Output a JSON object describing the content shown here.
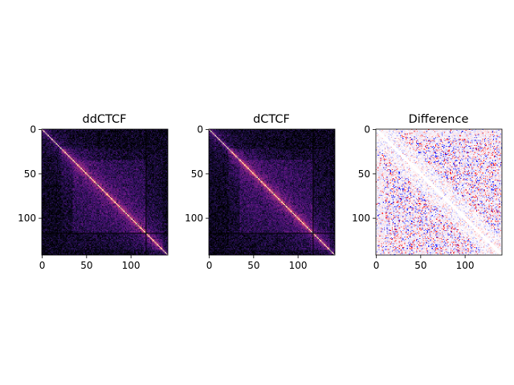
{
  "chart_data": [
    {
      "type": "heatmap",
      "title": "ddCTCF",
      "colormap": "magma",
      "matrix_size": 142,
      "x_ticks": [
        0,
        50,
        100
      ],
      "y_ticks": [
        0,
        50,
        100
      ],
      "x_range": [
        0,
        142
      ],
      "y_range": [
        0,
        142
      ],
      "boundary_lines": [
        117
      ],
      "tad_domain": [
        35,
        117
      ]
    },
    {
      "type": "heatmap",
      "title": "dCTCF",
      "colormap": "magma",
      "matrix_size": 142,
      "x_ticks": [
        0,
        50,
        100
      ],
      "y_ticks": [
        0,
        50,
        100
      ],
      "x_range": [
        0,
        142
      ],
      "y_range": [
        0,
        142
      ],
      "boundary_lines": [
        117
      ],
      "tad_domain": [
        35,
        117
      ]
    },
    {
      "type": "heatmap",
      "title": "Difference",
      "colormap": "bwr",
      "matrix_size": 142,
      "x_ticks": [
        0,
        50,
        100
      ],
      "y_ticks": [
        0,
        50,
        100
      ],
      "x_range": [
        0,
        142
      ],
      "y_range": [
        0,
        142
      ]
    }
  ]
}
